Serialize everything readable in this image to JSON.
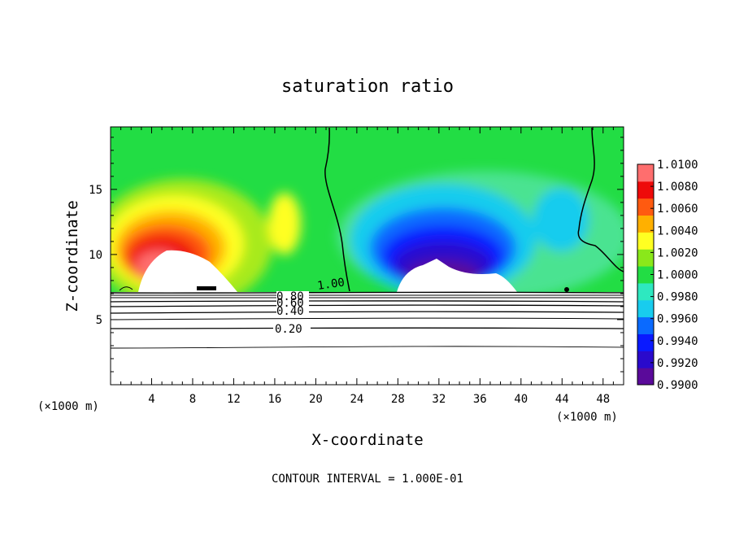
{
  "chart_data": {
    "type": "heatmap",
    "title": "saturation ratio",
    "xlabel": "X-coordinate",
    "ylabel": "Z-coordinate",
    "x_unit": "(×1000 m)",
    "y_unit": "(×1000 m)",
    "xlim": [
      0,
      50
    ],
    "ylim": [
      0,
      19.8
    ],
    "x_ticks": [
      "4",
      "8",
      "12",
      "16",
      "20",
      "24",
      "28",
      "32",
      "36",
      "40",
      "44",
      "48"
    ],
    "y_ticks": [
      "5",
      "10",
      "15"
    ],
    "contour_interval": "CONTOUR INTERVAL = 1.000E-01",
    "contour_labels": [
      "1.00",
      "0.80",
      "0.60",
      "0.40",
      "0.20"
    ],
    "colorbar": {
      "min": 0.99,
      "max": 1.01,
      "labels": [
        "1.0100",
        "1.0080",
        "1.0060",
        "1.0040",
        "1.0020",
        "1.0000",
        "0.9980",
        "0.9960",
        "0.9940",
        "0.9920",
        "0.9900"
      ],
      "colors": [
        "#5a0a9a",
        "#2a0acc",
        "#0a1aff",
        "#0a6aff",
        "#18ccee",
        "#2ee8c0",
        "#22dd44",
        "#8ae81a",
        "#ffff22",
        "#ffb000",
        "#ff5a10",
        "#ee0a0a",
        "#ff6e6e"
      ]
    },
    "regions": [
      {
        "name": "supersaturated-core",
        "x": 6,
        "z": 11,
        "value": 1.008
      },
      {
        "name": "subsaturated-core",
        "x": 31,
        "z": 10.5,
        "value": 0.991
      }
    ]
  }
}
